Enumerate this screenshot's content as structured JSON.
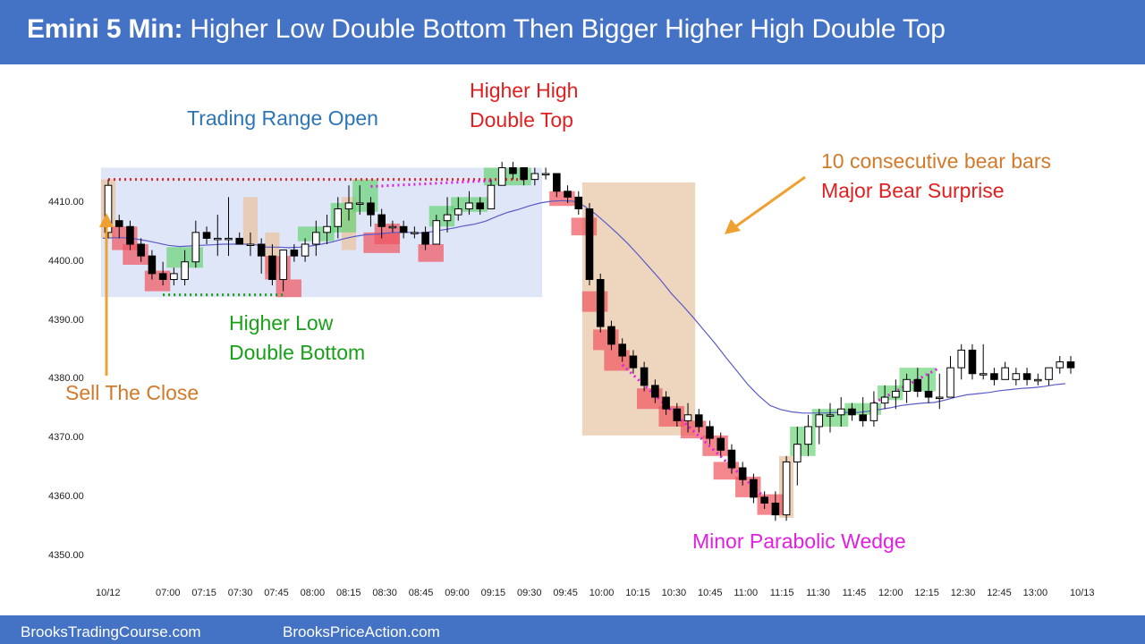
{
  "header": {
    "title_bold": "Emini 5 Min:",
    "title_rest": "Higher Low Double Bottom Then Bigger Higher High Double Top",
    "bg_color": "#4472c4"
  },
  "footer": {
    "left_link": "BrooksTradingCourse.com",
    "right_link": "BrooksPriceAction.com"
  },
  "annotations": {
    "trading_range_open": "Trading Range Open",
    "higher_high_line1": "Higher High",
    "higher_high_line2": "Double Top",
    "bear_bars_line1": "10 consecutive bear bars",
    "bear_bars_line2": "Major Bear Surprise",
    "higher_low_line1": "Higher Low",
    "higher_low_line2": "Double Bottom",
    "sell_the_close": "Sell The Close",
    "minor_wedge": "Minor Parabolic Wedge"
  },
  "colors": {
    "range_box": "#dfe6f7",
    "bull_highlight": "#5fd36f",
    "bear_highlight": "#f0545e",
    "tan_highlight": "#e8c7a8",
    "ema": "#5b5bc8",
    "red_text": "#e02020",
    "orange_text": "#d07a2a",
    "blue_text": "#2e75b6",
    "green_text": "#19a019",
    "magenta_text": "#e020e0"
  },
  "chart_data": {
    "type": "candlestick",
    "ylim": [
      4346,
      4422
    ],
    "y_ticks": [
      "4350.00",
      "4360.00",
      "4370.00",
      "4380.00",
      "4390.00",
      "4400.00",
      "4410.00"
    ],
    "x_ticks": [
      "10/12",
      "07:00",
      "07:15",
      "07:30",
      "07:45",
      "08:00",
      "08:15",
      "08:30",
      "08:45",
      "09:00",
      "09:15",
      "09:30",
      "09:45",
      "10:00",
      "10:15",
      "10:30",
      "10:45",
      "11:00",
      "11:15",
      "11:30",
      "11:45",
      "12:00",
      "12:15",
      "12:30",
      "12:45",
      "13:00",
      "10/13"
    ],
    "bars": [
      {
        "o": 4405,
        "h": 4414,
        "l": 4404,
        "c": 4413
      },
      {
        "o": 4407,
        "h": 4408,
        "l": 4404,
        "c": 4406
      },
      {
        "o": 4406,
        "h": 4407,
        "l": 4402,
        "c": 4403
      },
      {
        "o": 4403,
        "h": 4404,
        "l": 4400,
        "c": 4401
      },
      {
        "o": 4401,
        "h": 4402,
        "l": 4397,
        "c": 4398
      },
      {
        "o": 4398,
        "h": 4400,
        "l": 4396,
        "c": 4397
      },
      {
        "o": 4397,
        "h": 4399,
        "l": 4396,
        "c": 4398
      },
      {
        "o": 4397,
        "h": 4402,
        "l": 4396,
        "c": 4400
      },
      {
        "o": 4400,
        "h": 4407,
        "l": 4399,
        "c": 4405
      },
      {
        "o": 4405,
        "h": 4406,
        "l": 4403,
        "c": 4404
      },
      {
        "o": 4404,
        "h": 4408,
        "l": 4401,
        "c": 4404
      },
      {
        "o": 4404,
        "h": 4411,
        "l": 4401,
        "c": 4404
      },
      {
        "o": 4404,
        "h": 4405,
        "l": 4403,
        "c": 4403
      },
      {
        "o": 4403,
        "h": 4405,
        "l": 4401,
        "c": 4403
      },
      {
        "o": 4403,
        "h": 4404,
        "l": 4398,
        "c": 4401
      },
      {
        "o": 4401,
        "h": 4403,
        "l": 4396,
        "c": 4397
      },
      {
        "o": 4397,
        "h": 4402,
        "l": 4395,
        "c": 4402
      },
      {
        "o": 4402,
        "h": 4403,
        "l": 4400,
        "c": 4401
      },
      {
        "o": 4401,
        "h": 4404,
        "l": 4400,
        "c": 4403
      },
      {
        "o": 4403,
        "h": 4407,
        "l": 4401,
        "c": 4405
      },
      {
        "o": 4405,
        "h": 4408,
        "l": 4403,
        "c": 4406
      },
      {
        "o": 4406,
        "h": 4411,
        "l": 4404,
        "c": 4409
      },
      {
        "o": 4409,
        "h": 4413,
        "l": 4407,
        "c": 4410
      },
      {
        "o": 4410,
        "h": 4413,
        "l": 4408,
        "c": 4410
      },
      {
        "o": 4410,
        "h": 4411,
        "l": 4406,
        "c": 4408
      },
      {
        "o": 4408,
        "h": 4409,
        "l": 4404,
        "c": 4406
      },
      {
        "o": 4406,
        "h": 4407,
        "l": 4405,
        "c": 4406
      },
      {
        "o": 4406,
        "h": 4407,
        "l": 4404,
        "c": 4405
      },
      {
        "o": 4405,
        "h": 4406,
        "l": 4404,
        "c": 4405
      },
      {
        "o": 4405,
        "h": 4406,
        "l": 4402,
        "c": 4403
      },
      {
        "o": 4403,
        "h": 4408,
        "l": 4403,
        "c": 4407
      },
      {
        "o": 4407,
        "h": 4411,
        "l": 4405,
        "c": 4408
      },
      {
        "o": 4408,
        "h": 4411,
        "l": 4407,
        "c": 4409
      },
      {
        "o": 4409,
        "h": 4412,
        "l": 4408,
        "c": 4410
      },
      {
        "o": 4410,
        "h": 4411,
        "l": 4408,
        "c": 4409
      },
      {
        "o": 4409,
        "h": 4414,
        "l": 4409,
        "c": 4413
      },
      {
        "o": 4413,
        "h": 4417,
        "l": 4413,
        "c": 4416
      },
      {
        "o": 4416,
        "h": 4417,
        "l": 4414,
        "c": 4415
      },
      {
        "o": 4416,
        "h": 4416,
        "l": 4413,
        "c": 4414
      },
      {
        "o": 4414,
        "h": 4416,
        "l": 4413,
        "c": 4415
      },
      {
        "o": 4415,
        "h": 4416,
        "l": 4414,
        "c": 4415
      },
      {
        "o": 4415,
        "h": 4415,
        "l": 4411,
        "c": 4412
      },
      {
        "o": 4412,
        "h": 4413,
        "l": 4410,
        "c": 4411
      },
      {
        "o": 4411,
        "h": 4412,
        "l": 4408,
        "c": 4409
      },
      {
        "o": 4409,
        "h": 4410,
        "l": 4396,
        "c": 4397
      },
      {
        "o": 4397,
        "h": 4398,
        "l": 4388,
        "c": 4389
      },
      {
        "o": 4389,
        "h": 4390,
        "l": 4385,
        "c": 4386
      },
      {
        "o": 4386,
        "h": 4387,
        "l": 4383,
        "c": 4384
      },
      {
        "o": 4384,
        "h": 4385,
        "l": 4381,
        "c": 4382
      },
      {
        "o": 4382,
        "h": 4383,
        "l": 4378,
        "c": 4379
      },
      {
        "o": 4379,
        "h": 4380,
        "l": 4376,
        "c": 4377
      },
      {
        "o": 4377,
        "h": 4378,
        "l": 4374,
        "c": 4375
      },
      {
        "o": 4375,
        "h": 4376,
        "l": 4372,
        "c": 4373
      },
      {
        "o": 4373,
        "h": 4376,
        "l": 4371,
        "c": 4374
      },
      {
        "o": 4374,
        "h": 4375,
        "l": 4371,
        "c": 4372
      },
      {
        "o": 4372,
        "h": 4373,
        "l": 4369,
        "c": 4370
      },
      {
        "o": 4370,
        "h": 4371,
        "l": 4367,
        "c": 4368
      },
      {
        "o": 4368,
        "h": 4369,
        "l": 4364,
        "c": 4365
      },
      {
        "o": 4365,
        "h": 4366,
        "l": 4362,
        "c": 4363
      },
      {
        "o": 4363,
        "h": 4364,
        "l": 4359,
        "c": 4360
      },
      {
        "o": 4360,
        "h": 4361,
        "l": 4358,
        "c": 4359
      },
      {
        "o": 4359,
        "h": 4361,
        "l": 4356,
        "c": 4357
      },
      {
        "o": 4357,
        "h": 4367,
        "l": 4356,
        "c": 4366
      },
      {
        "o": 4366,
        "h": 4372,
        "l": 4362,
        "c": 4369
      },
      {
        "o": 4369,
        "h": 4374,
        "l": 4367,
        "c": 4372
      },
      {
        "o": 4372,
        "h": 4375,
        "l": 4369,
        "c": 4374
      },
      {
        "o": 4374,
        "h": 4376,
        "l": 4371,
        "c": 4374
      },
      {
        "o": 4374,
        "h": 4377,
        "l": 4372,
        "c": 4375
      },
      {
        "o": 4375,
        "h": 4376,
        "l": 4373,
        "c": 4374
      },
      {
        "o": 4374,
        "h": 4377,
        "l": 4372,
        "c": 4373
      },
      {
        "o": 4373,
        "h": 4378,
        "l": 4372,
        "c": 4376
      },
      {
        "o": 4376,
        "h": 4379,
        "l": 4375,
        "c": 4377
      },
      {
        "o": 4377,
        "h": 4380,
        "l": 4375,
        "c": 4378
      },
      {
        "o": 4378,
        "h": 4381,
        "l": 4376,
        "c": 4380
      },
      {
        "o": 4380,
        "h": 4382,
        "l": 4377,
        "c": 4378
      },
      {
        "o": 4378,
        "h": 4381,
        "l": 4376,
        "c": 4377
      },
      {
        "o": 4377,
        "h": 4381,
        "l": 4375,
        "c": 4377
      },
      {
        "o": 4377,
        "h": 4384,
        "l": 4377,
        "c": 4382
      },
      {
        "o": 4382,
        "h": 4386,
        "l": 4380,
        "c": 4385
      },
      {
        "o": 4385,
        "h": 4386,
        "l": 4380,
        "c": 4381
      },
      {
        "o": 4381,
        "h": 4386,
        "l": 4380,
        "c": 4381
      },
      {
        "o": 4381,
        "h": 4382,
        "l": 4379,
        "c": 4380
      },
      {
        "o": 4380,
        "h": 4383,
        "l": 4380,
        "c": 4382
      },
      {
        "o": 4380,
        "h": 4382,
        "l": 4379,
        "c": 4381
      },
      {
        "o": 4381,
        "h": 4382,
        "l": 4379,
        "c": 4380
      },
      {
        "o": 4380,
        "h": 4381,
        "l": 4379,
        "c": 4380
      },
      {
        "o": 4380,
        "h": 4382,
        "l": 4379,
        "c": 4382
      },
      {
        "o": 4382,
        "h": 4384,
        "l": 4381,
        "c": 4383
      },
      {
        "o": 4383,
        "h": 4384,
        "l": 4381,
        "c": 4382
      }
    ],
    "ema": [
      4404,
      4404.1,
      4404.1,
      4403.9,
      4403.6,
      4403.2,
      4402.8,
      4402.6,
      4402.7,
      4402.8,
      4402.9,
      4403,
      4403,
      4403,
      4402.9,
      4402.5,
      4402.5,
      4402.4,
      4402.5,
      4402.7,
      4403,
      4403.4,
      4403.9,
      4404.3,
      4404.6,
      4404.7,
      4404.9,
      4405,
      4405,
      4404.9,
      4405.1,
      4405.4,
      4405.7,
      4406.1,
      4406.4,
      4406.9,
      4407.7,
      4408.4,
      4408.9,
      4409.5,
      4410,
      4410.3,
      4410.4,
      4410.3,
      4409.5,
      4408.2,
      4406.6,
      4404.9,
      4403.1,
      4401.1,
      4399,
      4396.9,
      4394.6,
      4392.6,
      4390.5,
      4388.3,
      4386.1,
      4383.7,
      4381.4,
      4379.1,
      4377.2,
      4375.6,
      4374.9,
      4374.5,
      4374.3,
      4374.3,
      4374.3,
      4374.4,
      4374.4,
      4374.4,
      4374.6,
      4374.9,
      4375.2,
      4375.6,
      4375.8,
      4376,
      4376.1,
      4376.5,
      4377,
      4377.4,
      4377.6,
      4377.8,
      4378.1,
      4378.3,
      4378.5,
      4378.6,
      4378.8,
      4379.1,
      4379.3
    ],
    "x_axis": "time (5 min bars, 10/12 session)",
    "grid": false
  }
}
